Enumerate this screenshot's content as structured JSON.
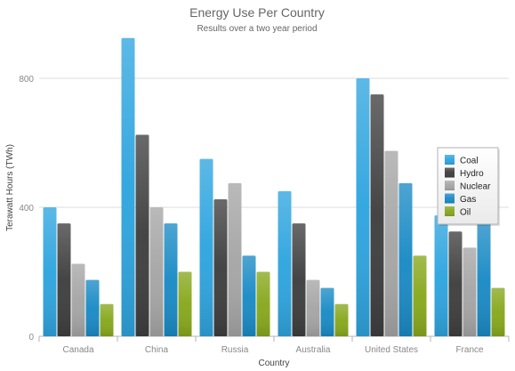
{
  "chart_data": {
    "type": "bar",
    "title": "Energy Use Per Country",
    "subtitle": "Results over a two year period",
    "xlabel": "Country",
    "ylabel": "Terawatt Hours (TWh)",
    "ylim": [
      0,
      1000
    ],
    "yticks": [
      0,
      400,
      800
    ],
    "grid": true,
    "legend_position": "right",
    "categories": [
      "Canada",
      "China",
      "Russia",
      "Australia",
      "United States",
      "France"
    ],
    "series": [
      {
        "name": "Coal",
        "values": [
          400,
          925,
          550,
          450,
          800,
          375
        ],
        "color": "#2fa5df"
      },
      {
        "name": "Hydro",
        "values": [
          350,
          625,
          425,
          350,
          750,
          325
        ],
        "color": "#3f3f3f"
      },
      {
        "name": "Nuclear",
        "values": [
          225,
          400,
          475,
          175,
          575,
          275
        ],
        "color": "#a6a6a6"
      },
      {
        "name": "Gas",
        "values": [
          175,
          350,
          250,
          150,
          475,
          350
        ],
        "color": "#1b8bc5"
      },
      {
        "name": "Oil",
        "values": [
          100,
          200,
          200,
          100,
          250,
          150
        ],
        "color": "#88a81e"
      }
    ]
  }
}
